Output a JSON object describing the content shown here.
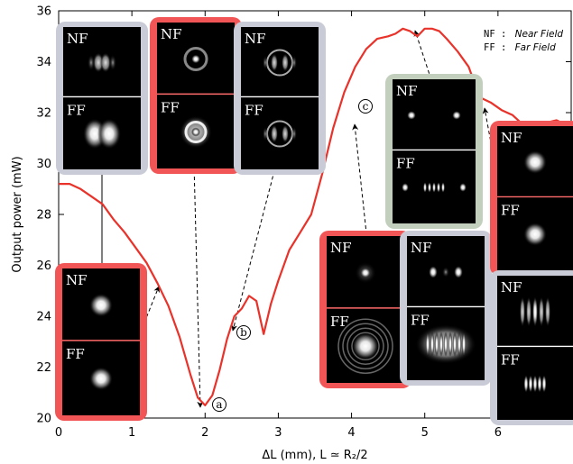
{
  "chart_data": {
    "type": "line",
    "xlabel": "ΔL (mm), L ≃ R₂/2",
    "ylabel": "Output power (mW)",
    "xlim": [
      0,
      7
    ],
    "ylim": [
      20,
      36
    ],
    "x_ticks": [
      "0",
      "1",
      "2",
      "3",
      "4",
      "5",
      "6"
    ],
    "y_ticks": [
      "20",
      "22",
      "24",
      "26",
      "28",
      "30",
      "32",
      "34",
      "36"
    ],
    "grid": false,
    "line_color": "#e8322a",
    "series": [
      {
        "x": [
          0,
          0.15,
          0.3,
          0.45,
          0.6,
          0.75,
          0.9,
          1.05,
          1.2,
          1.35,
          1.5,
          1.65,
          1.8,
          1.9,
          2.0,
          2.1,
          2.2,
          2.3,
          2.4,
          2.5,
          2.6,
          2.7,
          2.8,
          2.9,
          3.0,
          3.15,
          3.3,
          3.45,
          3.6,
          3.75,
          3.9,
          4.05,
          4.2,
          4.35,
          4.5,
          4.6,
          4.7,
          4.8,
          4.9,
          5.0,
          5.1,
          5.2,
          5.3,
          5.45,
          5.6,
          5.75,
          5.9,
          6.05,
          6.2,
          6.35,
          6.5,
          6.65,
          6.8,
          6.95,
          7.0
        ],
        "y": [
          29.2,
          29.2,
          29.0,
          28.7,
          28.4,
          27.8,
          27.3,
          26.7,
          26.1,
          25.3,
          24.4,
          23.2,
          21.7,
          20.8,
          20.5,
          20.9,
          21.9,
          23.1,
          24.0,
          24.3,
          24.8,
          24.6,
          23.3,
          24.5,
          25.4,
          26.6,
          27.3,
          28.0,
          29.6,
          31.4,
          32.8,
          33.8,
          34.5,
          34.9,
          35.0,
          35.1,
          35.3,
          35.2,
          35.0,
          35.3,
          35.3,
          35.2,
          34.9,
          34.4,
          33.8,
          32.6,
          32.4,
          32.1,
          31.9,
          31.5,
          31.2,
          31.6,
          31.7,
          31.5,
          31.6
        ]
      }
    ],
    "legend": {
      "placement": "top-right",
      "nf_key": "NF :",
      "nf_value": "Near Field",
      "ff_key": "FF :",
      "ff_value": "Far Field"
    },
    "markers": [
      {
        "label": "a",
        "x": 2.1,
        "y": 20.9
      },
      {
        "label": "b",
        "x": 2.5,
        "y": 22.8
      },
      {
        "label": "c",
        "x": 4.1,
        "y": 33.2
      }
    ],
    "insets": [
      {
        "nf": "NF",
        "ff": "FF",
        "frame": "gray",
        "nf_pattern": "two-lobe",
        "ff_pattern": "two-lobe-wide"
      },
      {
        "nf": "NF",
        "ff": "FF",
        "frame": "red",
        "nf_pattern": "ring",
        "ff_pattern": "ring-bright"
      },
      {
        "nf": "NF",
        "ff": "FF",
        "frame": "gray",
        "nf_pattern": "ring-lobes",
        "ff_pattern": "ring-lobes"
      },
      {
        "nf": "NF",
        "ff": "FF",
        "frame": "red",
        "nf_pattern": "spot",
        "ff_pattern": "spot"
      },
      {
        "nf": "NF",
        "ff": "FF",
        "frame": "red",
        "nf_pattern": "spot-halo",
        "ff_pattern": "spot-rings"
      },
      {
        "nf": "NF",
        "ff": "FF",
        "frame": "gray",
        "nf_pattern": "triple-spot",
        "ff_pattern": "fringe-wide"
      },
      {
        "nf": "NF",
        "ff": "FF",
        "frame": "green",
        "nf_pattern": "two-spot",
        "ff_pattern": "fringe-row"
      },
      {
        "nf": "NF",
        "ff": "FF",
        "frame": "red",
        "nf_pattern": "spot",
        "ff_pattern": "spot"
      },
      {
        "nf": "NF",
        "ff": "FF",
        "frame": "gray",
        "nf_pattern": "stripes",
        "ff_pattern": "fringe-small"
      }
    ],
    "colors": {
      "red_frame": "#f25555",
      "gray_frame": "#c9cbd6",
      "green_frame": "#c3cfbd",
      "divider_red": "#ff6a6a",
      "divider_white": "#ffffff"
    }
  }
}
